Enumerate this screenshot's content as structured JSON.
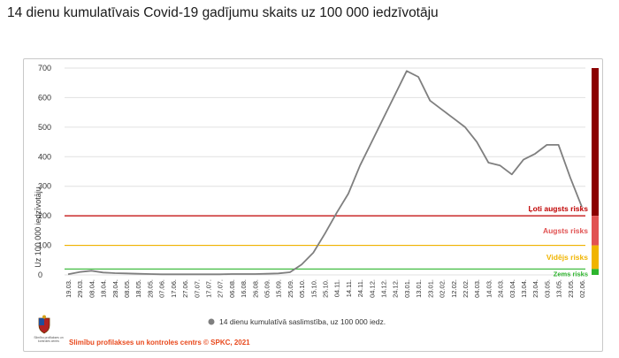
{
  "title": "14 dienu kumulatīvais Covid-19 gadījumu skaits uz 100 000 iedzīvotāju",
  "credit": "Slimību profilakses un kontroles centrs © SPKC, 2021",
  "logo_text": "Slimību profilakses un kontroles centrs",
  "logo_icon": "coat-of-arms-icon",
  "colors": {
    "line": "#7f7f7f",
    "very_high": "#c00000",
    "high": "#e15252",
    "medium": "#f0b400",
    "low": "#2db52d",
    "very_high_bar": "#8b0000",
    "credit": "#e8491d"
  },
  "chart_data": {
    "type": "line",
    "ylabel": "Uz 100 000 iedzīvotāju",
    "ylim": [
      0,
      700
    ],
    "yticks": [
      0,
      100,
      200,
      300,
      400,
      500,
      600,
      700
    ],
    "grid": true,
    "legend_position": "bottom-center",
    "x_tick_labels": [
      "19.03.",
      "29.03.",
      "08.04.",
      "18.04.",
      "28.04.",
      "08.05.",
      "18.05.",
      "28.05.",
      "07.06.",
      "17.06.",
      "27.06.",
      "07.07.",
      "17.07.",
      "27.07.",
      "06.08.",
      "16.08.",
      "26.08.",
      "05.09.",
      "15.09.",
      "25.09.",
      "05.10.",
      "15.10.",
      "25.10.",
      "04.11.",
      "14.11.",
      "24.11.",
      "04.12.",
      "14.12.",
      "24.12.",
      "03.01.",
      "13.01.",
      "23.01.",
      "02.02.",
      "12.02.",
      "22.02.",
      "04.03.",
      "14.03.",
      "24.03.",
      "03.04.",
      "13.04.",
      "23.04.",
      "03.05.",
      "13.05.",
      "23.05.",
      "02.06."
    ],
    "series": [
      {
        "name": "14 dienu kumulatīvā saslimstība, uz 100 000 iedz.",
        "x": [
          "19.03.",
          "29.03.",
          "08.04.",
          "18.04.",
          "28.04.",
          "08.05.",
          "18.05.",
          "28.05.",
          "07.06.",
          "17.06.",
          "27.06.",
          "07.07.",
          "17.07.",
          "27.07.",
          "06.08.",
          "16.08.",
          "26.08.",
          "05.09.",
          "15.09.",
          "25.09.",
          "05.10.",
          "15.10.",
          "25.10.",
          "04.11.",
          "14.11.",
          "24.11.",
          "04.12.",
          "14.12.",
          "24.12.",
          "03.01.",
          "13.01.",
          "23.01.",
          "02.02.",
          "12.02.",
          "22.02.",
          "04.03.",
          "14.03.",
          "24.03.",
          "03.04.",
          "13.04.",
          "23.04.",
          "03.05.",
          "13.05.",
          "23.05.",
          "02.06."
        ],
        "values": [
          2,
          10,
          14,
          8,
          6,
          5,
          4,
          3,
          2,
          2,
          2,
          2,
          2,
          2,
          3,
          3,
          3,
          4,
          5,
          9,
          35,
          75,
          140,
          210,
          275,
          370,
          450,
          530,
          610,
          690,
          670,
          590,
          560,
          530,
          500,
          450,
          380,
          370,
          340,
          390,
          410,
          440,
          440,
          330,
          230
        ]
      }
    ],
    "thresholds": [
      {
        "label": "Ļoti augsts risks",
        "value": 200,
        "band": [
          200,
          700
        ],
        "color": "#c00000"
      },
      {
        "label": "Augsts risks",
        "value": 100,
        "band": [
          100,
          200
        ],
        "color": "#e15252"
      },
      {
        "label": "Vidējs risks",
        "value": 20,
        "band": [
          20,
          100
        ],
        "color": "#f0b400"
      },
      {
        "label": "Zems risks",
        "value": 0,
        "band": [
          0,
          20
        ],
        "color": "#2db52d"
      }
    ]
  }
}
